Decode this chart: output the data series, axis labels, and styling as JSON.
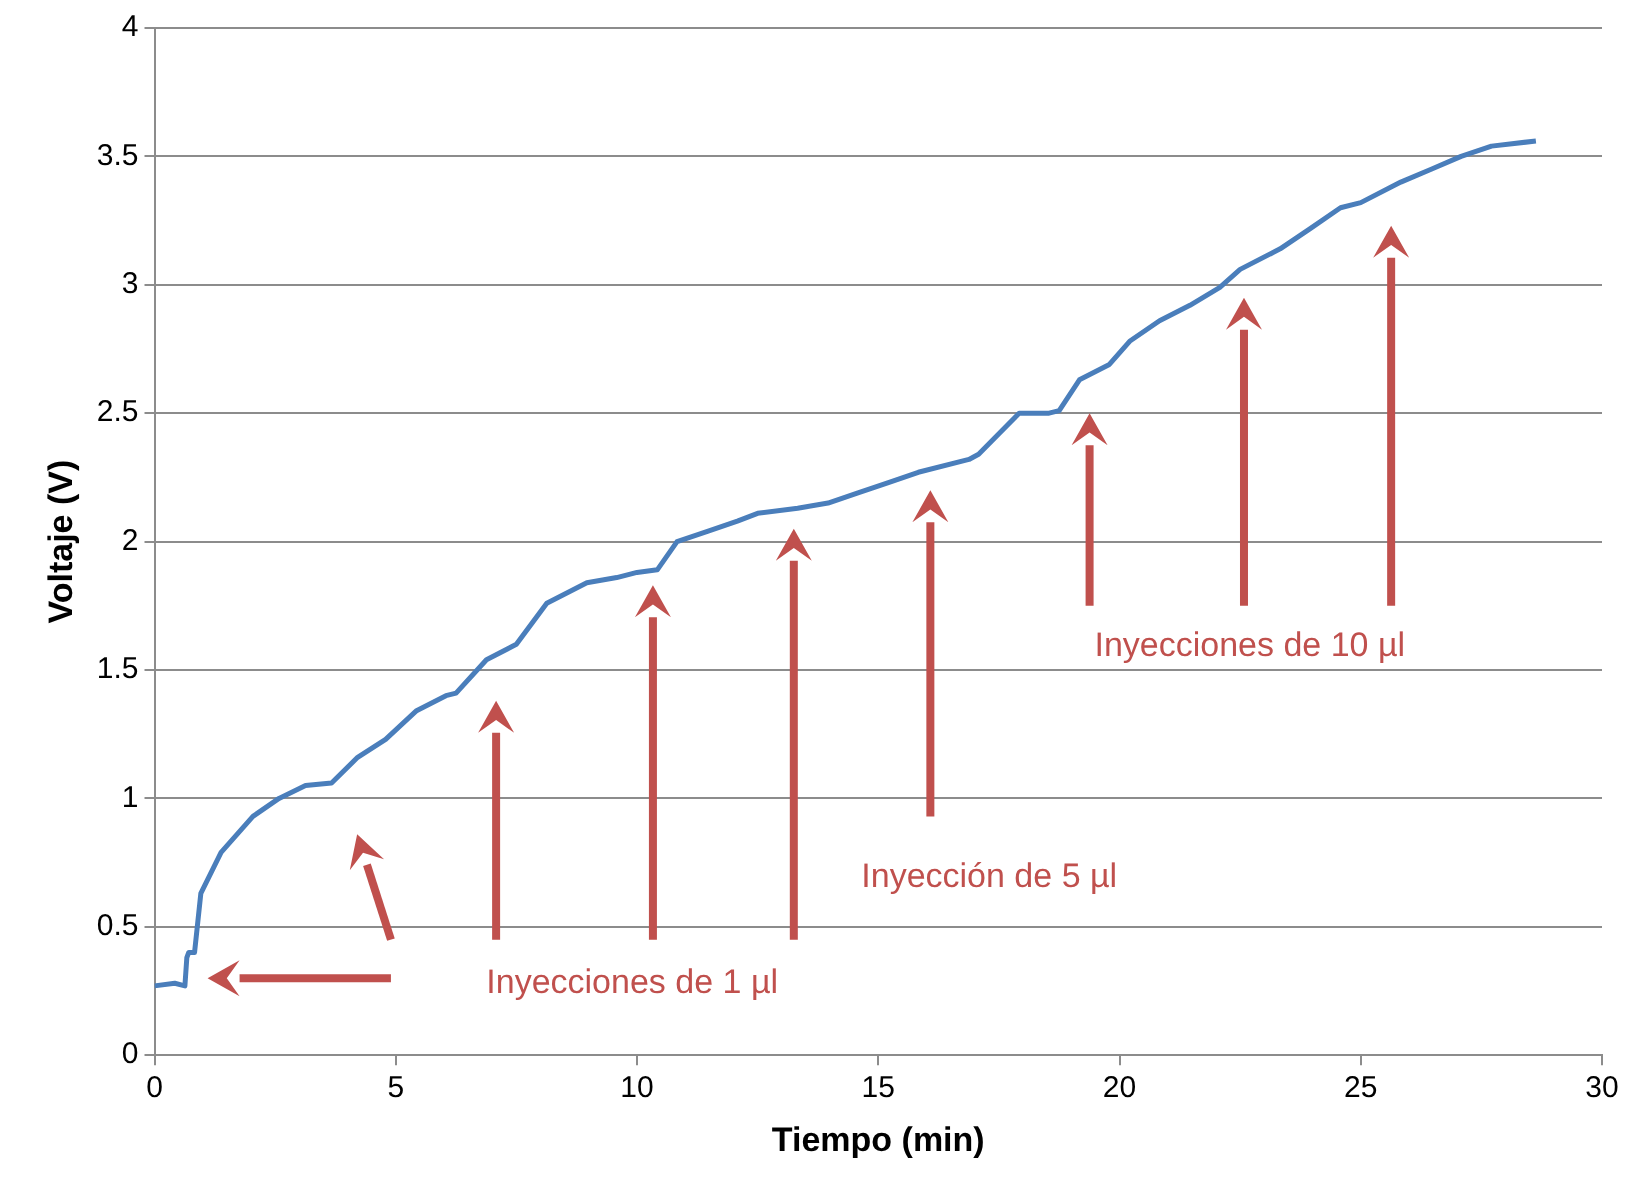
{
  "chart_data": {
    "type": "line",
    "xlabel": "Tiempo (min)",
    "ylabel": "Voltaje (V)",
    "xlim": [
      0,
      30
    ],
    "xticks": [
      0,
      5,
      10,
      15,
      20,
      25,
      30
    ],
    "ylim": [
      0,
      4
    ],
    "yticks": [
      0,
      0.5,
      1,
      1.5,
      2,
      2.5,
      3,
      3.5,
      4
    ],
    "grid": "y",
    "legend": false,
    "marker": "none",
    "line_style": "solid",
    "series": [
      {
        "color": "#4a7ebb",
        "x": [
          0,
          0.42,
          0.63,
          0.67,
          0.71,
          0.83,
          0.96,
          1.38,
          2.04,
          2.58,
          3.13,
          3.67,
          4.21,
          4.79,
          5.42,
          6.04,
          6.25,
          6.88,
          7.5,
          8.13,
          8.96,
          9.58,
          10.0,
          10.42,
          10.83,
          11.46,
          12.08,
          12.5,
          13.33,
          13.96,
          14.58,
          15.21,
          15.83,
          16.88,
          17.08,
          17.5,
          17.92,
          18.54,
          18.75,
          19.17,
          19.79,
          20.21,
          20.83,
          21.46,
          22.08,
          22.5,
          23.33,
          23.96,
          24.58,
          25.0,
          25.83,
          26.46,
          27.08,
          27.71,
          28.63
        ],
        "values": [
          0.27,
          0.28,
          0.27,
          0.38,
          0.4,
          0.4,
          0.63,
          0.79,
          0.93,
          1.0,
          1.05,
          1.06,
          1.16,
          1.23,
          1.34,
          1.4,
          1.41,
          1.54,
          1.6,
          1.76,
          1.84,
          1.86,
          1.88,
          1.89,
          2.0,
          2.04,
          2.08,
          2.11,
          2.13,
          2.15,
          2.19,
          2.23,
          2.27,
          2.32,
          2.34,
          2.42,
          2.5,
          2.5,
          2.51,
          2.63,
          2.69,
          2.78,
          2.86,
          2.92,
          2.99,
          3.06,
          3.14,
          3.22,
          3.3,
          3.32,
          3.4,
          3.45,
          3.5,
          3.54,
          3.56
        ]
      }
    ],
    "annotations": [
      "Inyecciones de 1 µl",
      "Inyección de 5 µl",
      "Inyecciones de 10 µl"
    ]
  }
}
